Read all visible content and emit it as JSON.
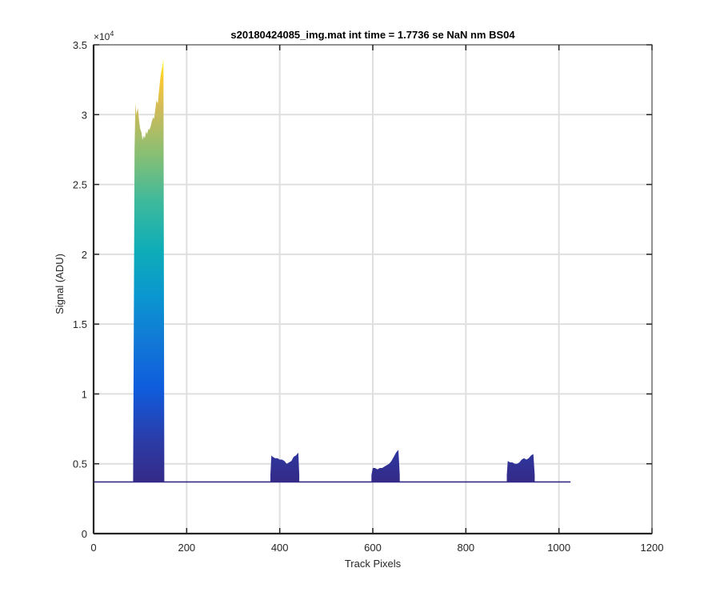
{
  "chart_data": {
    "type": "area",
    "title": "s20180424085_img.mat int time = 1.7736 se  NaN nm BS04",
    "xlabel": "Track Pixels",
    "ylabel": "Signal (ADU)",
    "xlim": [
      0,
      1200
    ],
    "ylim": [
      0,
      35000
    ],
    "y_exponent_label": "×10",
    "y_exponent_power": "4",
    "grid": true,
    "colormap": "parula",
    "x_ticks": [
      0,
      200,
      400,
      600,
      800,
      1000,
      1200
    ],
    "x_tick_labels": [
      "0",
      "200",
      "400",
      "600",
      "800",
      "1000",
      "1200"
    ],
    "y_ticks": [
      0,
      5000,
      10000,
      15000,
      20000,
      25000,
      30000,
      35000
    ],
    "y_tick_labels": [
      "0",
      "0.5",
      "1",
      "1.5",
      "2",
      "2.5",
      "3",
      "3.5"
    ],
    "baseline": {
      "x": [
        0,
        1025
      ],
      "y": 3700
    },
    "peaks": [
      {
        "x": [
          85,
          88,
          90,
          92,
          95,
          98,
          100,
          103,
          105,
          108,
          110,
          113,
          115,
          118,
          120,
          123,
          125,
          128,
          130,
          133,
          135,
          138,
          140,
          143,
          145,
          148,
          150,
          152
        ],
        "y": [
          3900,
          27500,
          30800,
          30000,
          30500,
          29500,
          29000,
          28700,
          28200,
          28500,
          28300,
          28800,
          28600,
          29000,
          28900,
          29200,
          29500,
          29800,
          29700,
          30500,
          31000,
          30800,
          31500,
          32500,
          33000,
          33500,
          34000,
          4000
        ]
      },
      {
        "x": [
          380,
          382,
          385,
          390,
          395,
          400,
          405,
          410,
          415,
          420,
          425,
          430,
          435,
          440,
          442
        ],
        "y": [
          4200,
          5600,
          5500,
          5400,
          5400,
          5300,
          5300,
          5200,
          5000,
          5100,
          5200,
          5500,
          5600,
          5800,
          4200
        ]
      },
      {
        "x": [
          597,
          600,
          605,
          610,
          615,
          620,
          625,
          630,
          635,
          640,
          645,
          650,
          655,
          658
        ],
        "y": [
          4200,
          4700,
          4700,
          4600,
          4700,
          4700,
          4800,
          4900,
          5000,
          5200,
          5500,
          5800,
          6000,
          4200
        ]
      },
      {
        "x": [
          888,
          890,
          895,
          900,
          905,
          910,
          915,
          920,
          925,
          930,
          935,
          940,
          945,
          948
        ],
        "y": [
          4200,
          5200,
          5100,
          5100,
          5000,
          5000,
          5100,
          5300,
          5400,
          5300,
          5400,
          5600,
          5700,
          4200
        ]
      }
    ]
  }
}
